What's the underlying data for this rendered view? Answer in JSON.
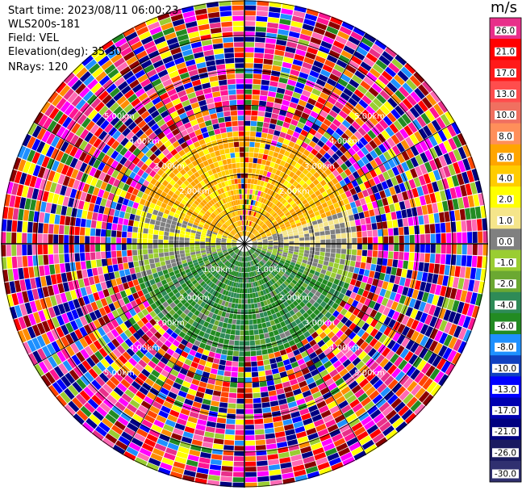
{
  "header": {
    "start_time": "Start time: 2023/08/11 06:00:23",
    "instrument": "WLS200s-181",
    "field": "Field: VEL",
    "elevation": "Elevation(deg): 35.30",
    "nrays": "NRays: 120"
  },
  "range_rings": [
    "1.00km",
    "2.00km",
    "3.00km",
    "4.00km",
    "5.00km"
  ],
  "colorbar": {
    "unit": "m/s",
    "ticks": [
      "26.0",
      "21.0",
      "17.0",
      "13.0",
      "10.0",
      "8.0",
      "6.0",
      "4.0",
      "2.0",
      "1.0",
      "0.0",
      "-1.0",
      "-2.0",
      "-4.0",
      "-6.0",
      "-8.0",
      "-10.0",
      "-13.0",
      "-17.0",
      "-21.0",
      "-26.0",
      "-30.0"
    ],
    "colors": [
      "#e8308a",
      "#ff0000",
      "#ff1a1a",
      "#ff4d4d",
      "#f07060",
      "#ff8f5a",
      "#ffa500",
      "#ffcc00",
      "#ffff00",
      "#f5e58a",
      "#808080",
      "#9acd32",
      "#6ba832",
      "#2e8b57",
      "#228b22",
      "#1e90ff",
      "#1040c0",
      "#0000ff",
      "#0000b0",
      "#000080",
      "#1a1a60",
      "#303070"
    ]
  }
}
